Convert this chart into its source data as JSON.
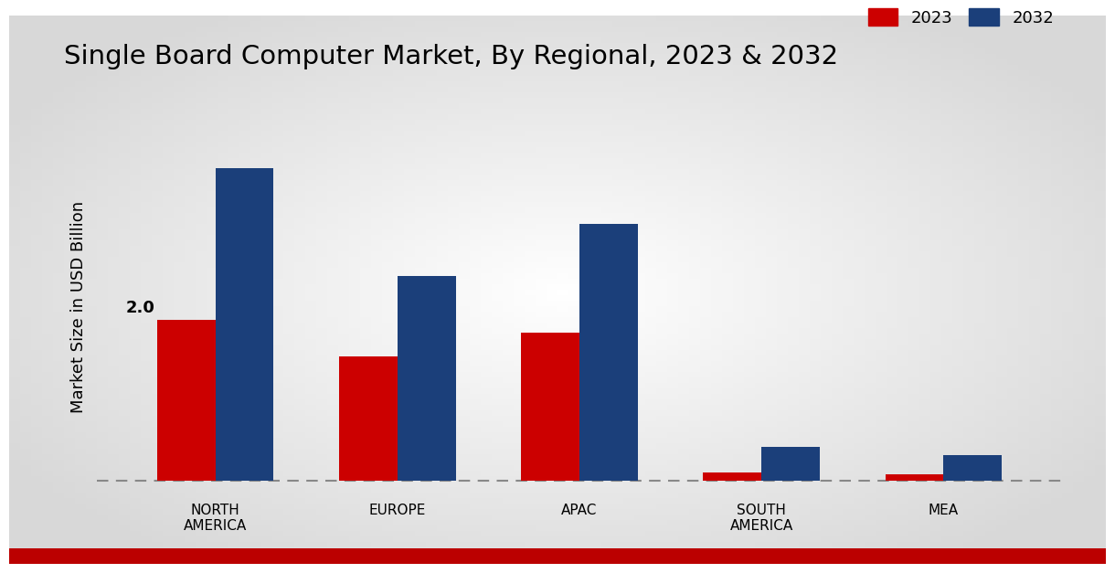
{
  "title": "Single Board Computer Market, By Regional, 2023 & 2032",
  "ylabel": "Market Size in USD Billion",
  "categories": [
    "NORTH\nAMERICA",
    "EUROPE",
    "APAC",
    "SOUTH\nAMERICA",
    "MEA"
  ],
  "values_2023": [
    2.0,
    1.55,
    1.85,
    0.1,
    0.08
  ],
  "values_2032": [
    3.9,
    2.55,
    3.2,
    0.42,
    0.32
  ],
  "color_2023": "#CC0000",
  "color_2032": "#1B3F7A",
  "bar_width": 0.32,
  "annotation_label": "2.0",
  "ylim_min": -0.15,
  "ylim_max": 4.5,
  "bg_color_center": "#FFFFFF",
  "bg_color_edge": "#D0D0D0",
  "legend_labels": [
    "2023",
    "2032"
  ],
  "bottom_bar_color": "#BB0000",
  "title_fontsize": 21,
  "axis_label_fontsize": 13,
  "tick_fontsize": 11,
  "legend_fontsize": 13
}
